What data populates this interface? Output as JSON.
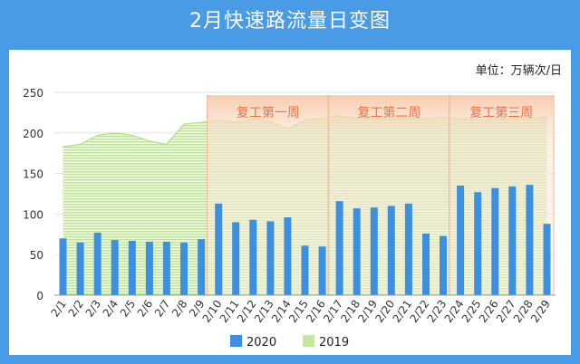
{
  "title": "2月快速路流量日变图",
  "chart_data": {
    "type": "bar",
    "title": "2月快速路流量日变图",
    "unit_label": "单位：万辆次/日",
    "categories": [
      "2/1",
      "2/2",
      "2/3",
      "2/4",
      "2/5",
      "2/6",
      "2/7",
      "2/8",
      "2/9",
      "2/10",
      "2/11",
      "2/12",
      "2/13",
      "2/14",
      "2/15",
      "2/16",
      "2/17",
      "2/18",
      "2/19",
      "2/20",
      "2/21",
      "2/22",
      "2/23",
      "2/24",
      "2/25",
      "2/26",
      "2/27",
      "2/28",
      "2/29"
    ],
    "ylim": [
      0,
      250
    ],
    "yticks": [
      0,
      50,
      100,
      150,
      200,
      250
    ],
    "grid": true,
    "legend_position": "bottom",
    "series": [
      {
        "name": "2020",
        "type": "bar",
        "color": "#3d8fe0",
        "values": [
          70,
          65,
          77,
          68,
          67,
          66,
          66,
          65,
          69,
          113,
          90,
          93,
          91,
          96,
          61,
          60,
          116,
          107,
          108,
          110,
          113,
          76,
          73,
          135,
          127,
          132,
          134,
          136,
          88
        ]
      },
      {
        "name": "2019",
        "type": "area",
        "color": "#c6e79e",
        "values": [
          183,
          186,
          197,
          200,
          197,
          190,
          186,
          211,
          213,
          216,
          213,
          218,
          214,
          205,
          216,
          218,
          221,
          218,
          218,
          217,
          218,
          218,
          219,
          218,
          216,
          216,
          218,
          218,
          220
        ]
      }
    ],
    "annotations": [
      {
        "label": "复工第一周",
        "from": "2/10",
        "to": "2/16"
      },
      {
        "label": "复工第二周",
        "from": "2/17",
        "to": "2/23"
      },
      {
        "label": "复工第三周",
        "from": "2/24",
        "to": "2/29"
      }
    ]
  }
}
